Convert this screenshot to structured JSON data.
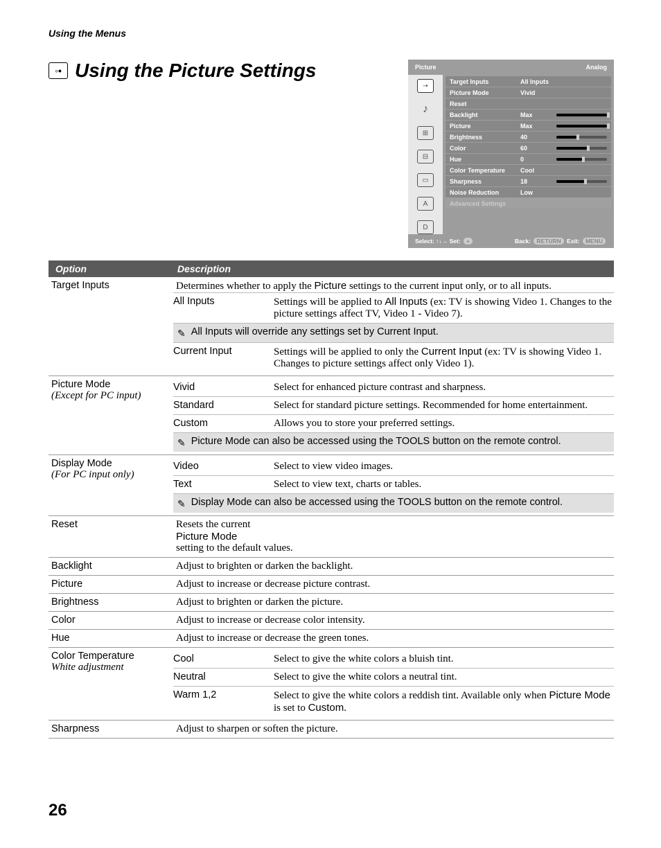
{
  "breadcrumb": "Using the Menus",
  "pageTitle": "Using the Picture Settings",
  "pageNumber": "26",
  "tableHeader": {
    "option": "Option",
    "description": "Description"
  },
  "osd": {
    "header": {
      "left": "Picture",
      "right": "Analog"
    },
    "rows": [
      {
        "label": "Target Inputs",
        "value": "All Inputs",
        "slider": null
      },
      {
        "label": "Picture Mode",
        "value": "Vivid",
        "slider": null
      },
      {
        "label": "Reset",
        "value": "",
        "slider": null
      },
      {
        "label": "Backlight",
        "value": "Max",
        "slider": 100
      },
      {
        "label": "Picture",
        "value": "Max",
        "slider": 100
      },
      {
        "label": "Brightness",
        "value": "40",
        "slider": 40
      },
      {
        "label": "Color",
        "value": "60",
        "slider": 60
      },
      {
        "label": "Hue",
        "value": "0",
        "slider": 50
      },
      {
        "label": "Color Temperature",
        "value": "Cool",
        "slider": null
      },
      {
        "label": "Sharpness",
        "value": "18",
        "slider": 55
      },
      {
        "label": "Noise Reduction",
        "value": "Low",
        "slider": null
      },
      {
        "label": "Advanced Settings",
        "value": "",
        "slider": null,
        "dim": true
      }
    ],
    "footer": {
      "select": "Select: ",
      "arrows": "↑↓→",
      "set": " Set: ",
      "setBtn": "+",
      "back": "Back: ",
      "backBtn": "RETURN",
      "exit": " Exit: ",
      "exitBtn": "MENU"
    }
  },
  "targetInputs": {
    "option": "Target Inputs",
    "desc": "Determines whether to apply the ",
    "descMid": "Picture",
    "desc2": " settings to the current input only, or to all inputs.",
    "allInputs": {
      "label": "All Inputs",
      "text1": "Settings will be applied to ",
      "bold": "All Inputs",
      "text2": " (ex: TV is showing Video 1. Changes to the picture settings affect TV, Video 1 - Video 7)."
    },
    "note": "All Inputs will override any settings set by Current Input.",
    "currentInput": {
      "label": "Current Input",
      "text1": "Settings will be applied to only the ",
      "bold": "Current Input",
      "text2": " (ex: TV is showing Video 1. Changes to picture settings affect only Video 1)."
    }
  },
  "pictureMode": {
    "option": "Picture Mode",
    "sub": "(Except for PC input)",
    "vivid": {
      "label": "Vivid",
      "text": "Select for enhanced picture contrast and sharpness."
    },
    "standard": {
      "label": "Standard",
      "text": "Select for standard picture settings. Recommended for home entertainment."
    },
    "custom": {
      "label": "Custom",
      "text": "Allows you to store your preferred settings."
    },
    "note": "Picture Mode can also be accessed using the TOOLS button on the remote control."
  },
  "displayMode": {
    "option": "Display Mode",
    "sub": "(For PC input only)",
    "video": {
      "label": "Video",
      "text": "Select to view video images."
    },
    "text": {
      "label": "Text",
      "text": "Select to view text, charts or tables."
    },
    "note": "Display Mode can also be accessed using the TOOLS button on the remote control."
  },
  "reset": {
    "option": "Reset",
    "text1": "Resets the current ",
    "bold": "Picture Mode",
    "text2": " setting to the default values."
  },
  "backlight": {
    "option": "Backlight",
    "text": "Adjust to brighten or darken the backlight."
  },
  "picture": {
    "option": "Picture",
    "text": "Adjust to increase or decrease picture contrast."
  },
  "brightness": {
    "option": "Brightness",
    "text": "Adjust to brighten or darken the picture."
  },
  "color": {
    "option": "Color",
    "text": "Adjust to increase or decrease color intensity."
  },
  "hue": {
    "option": "Hue",
    "text": "Adjust to increase or decrease the green tones."
  },
  "colorTemp": {
    "option": "Color Temperature",
    "sub": "White adjustment",
    "cool": {
      "label": "Cool",
      "text": "Select to give the white colors a bluish tint."
    },
    "neutral": {
      "label": "Neutral",
      "text": "Select to give the white colors a neutral tint."
    },
    "warm": {
      "label": "Warm 1,2",
      "text1": "Select to give the white colors a reddish tint. Available only when ",
      "bold": "Picture Mode",
      "text2": " is set to ",
      "bold2": "Custom",
      "text3": "."
    }
  },
  "sharpness": {
    "option": "Sharpness",
    "text": "Adjust to sharpen or soften the picture."
  },
  "colors": {
    "headerBg": "#5a5a5a",
    "noteBg": "#e0e0e0",
    "osdBg": "#9d9d9d",
    "osdSideBg": "#e8e8e8",
    "osdRowBg": "#888888",
    "border": "#999999"
  }
}
